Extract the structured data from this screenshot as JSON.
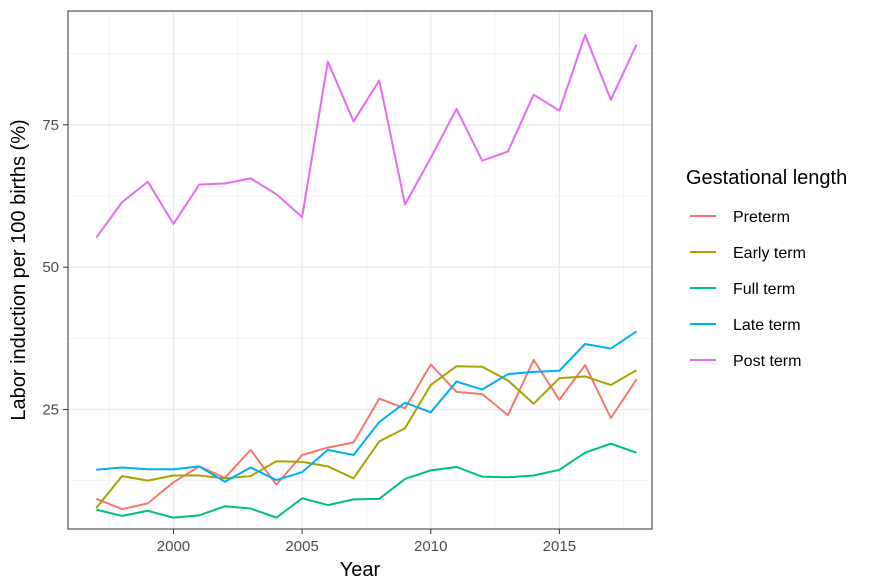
{
  "chart_data": {
    "type": "line",
    "xlabel": "Year",
    "ylabel": "Labor induction per 100 births (%)",
    "xlim": [
      1995.9,
      2018.6
    ],
    "ylim": [
      4.0,
      95.0
    ],
    "xticks": [
      2000,
      2005,
      2010,
      2015
    ],
    "yticks": [
      25,
      50,
      75
    ],
    "grid": true,
    "legend_title": "Gestational length",
    "legend_position": "right",
    "x": [
      1997,
      1998,
      1999,
      2000,
      2001,
      2002,
      2003,
      2004,
      2005,
      2006,
      2007,
      2008,
      2009,
      2010,
      2011,
      2012,
      2013,
      2014,
      2015,
      2016,
      2017,
      2018
    ],
    "series": [
      {
        "name": "Preterm",
        "color": "#F8766D",
        "values": [
          9.3,
          7.5,
          8.5,
          12.2,
          15.0,
          13.0,
          17.9,
          11.8,
          17.0,
          18.3,
          19.2,
          26.9,
          25.2,
          32.9,
          28.1,
          27.7,
          24.0,
          33.7,
          26.7,
          32.8,
          23.5,
          30.3
        ]
      },
      {
        "name": "Early term",
        "color": "#A3A500",
        "values": [
          7.7,
          13.3,
          12.5,
          13.4,
          13.4,
          12.9,
          13.3,
          15.9,
          15.8,
          15.0,
          12.9,
          19.4,
          21.7,
          29.3,
          32.6,
          32.5,
          30.1,
          26.0,
          30.5,
          30.8,
          29.3,
          31.9
        ]
      },
      {
        "name": "Full term",
        "color": "#00BF7D",
        "values": [
          7.4,
          6.3,
          7.2,
          6.0,
          6.4,
          8.0,
          7.6,
          6.0,
          9.4,
          8.2,
          9.2,
          9.3,
          12.8,
          14.3,
          14.9,
          13.2,
          13.1,
          13.4,
          14.4,
          17.4,
          19.0,
          17.4
        ]
      },
      {
        "name": "Late term",
        "color": "#00B0F6",
        "values": [
          14.4,
          14.8,
          14.5,
          14.5,
          15.0,
          12.3,
          14.8,
          12.6,
          14.0,
          17.9,
          17.0,
          22.8,
          26.2,
          24.5,
          29.9,
          28.5,
          31.2,
          31.6,
          31.8,
          36.5,
          35.7,
          38.7
        ]
      },
      {
        "name": "Post term",
        "color": "#E76BF3",
        "values": [
          55.2,
          61.4,
          65.0,
          57.6,
          64.5,
          64.7,
          65.6,
          62.8,
          58.8,
          86.1,
          75.6,
          82.8,
          61.0,
          69.2,
          77.8,
          68.7,
          70.3,
          80.3,
          77.5,
          90.8,
          79.4,
          89.1
        ]
      }
    ]
  }
}
